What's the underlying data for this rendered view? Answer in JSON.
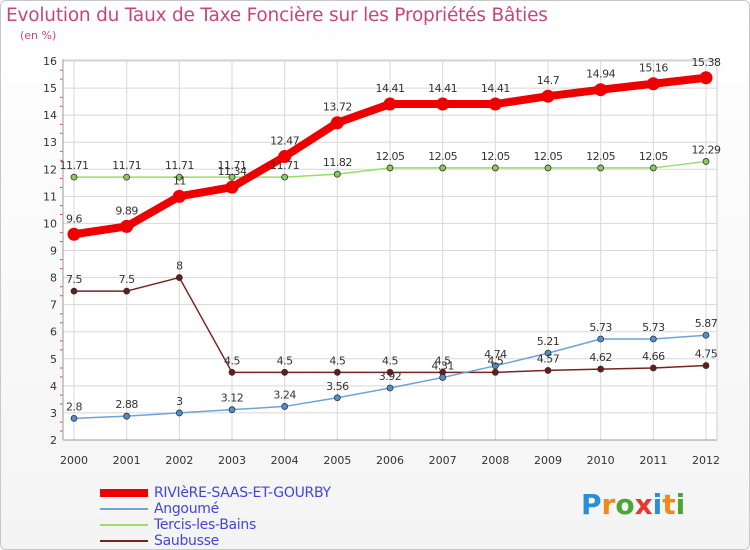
{
  "title": "Evolution du Taux de Taxe Foncière sur les Propriétés Bâties",
  "subtitle": "(en %)",
  "logo_text": "Proxiti",
  "logo_colors": [
    "#2b8fd6",
    "#f08a1c",
    "#4aa832",
    "#e23a2e",
    "#2b8fd6",
    "#f08a1c",
    "#4aa832"
  ],
  "chart_data": {
    "type": "line",
    "title": "Evolution du Taux de Taxe Foncière sur les Propriétés Bâties",
    "ylabel": "(en %)",
    "x": [
      "2000",
      "2001",
      "2002",
      "2003",
      "2004",
      "2005",
      "2006",
      "2007",
      "2008",
      "2009",
      "2010",
      "2011",
      "2012"
    ],
    "ylim": [
      2,
      16
    ],
    "yticks": [
      "2",
      "3",
      "4",
      "5",
      "6",
      "7",
      "8",
      "9",
      "10",
      "11",
      "12",
      "13",
      "14",
      "15",
      "16"
    ],
    "grid": true,
    "legend_position": "bottom-left",
    "series": [
      {
        "name": "RIVIèRE-SAAS-ET-GOURBY",
        "color": "#ee0000",
        "values": [
          9.6,
          9.89,
          11,
          11.34,
          12.47,
          13.72,
          14.41,
          14.41,
          14.41,
          14.7,
          14.94,
          15.16,
          15.38
        ],
        "labels": [
          "9.6",
          "9.89",
          "11",
          "11.34",
          "12.47",
          "13.72",
          "14.41",
          "14.41",
          "14.41",
          "14.7",
          "14.94",
          "15.16",
          "15.38"
        ]
      },
      {
        "name": "Angoumé",
        "color": "#6fa3d6",
        "values": [
          2.8,
          2.88,
          3,
          3.12,
          3.24,
          3.56,
          3.92,
          4.31,
          4.74,
          5.21,
          5.73,
          5.73,
          5.87
        ],
        "labels": [
          "2.8",
          "2.88",
          "3",
          "3.12",
          "3.24",
          "3.56",
          "3.92",
          "4.31",
          "4.74",
          "5.21",
          "5.73",
          "5.73",
          "5.87"
        ]
      },
      {
        "name": "Tercis-les-Bains",
        "color": "#99dd66",
        "values": [
          11.71,
          11.71,
          11.71,
          11.71,
          11.71,
          11.82,
          12.05,
          12.05,
          12.05,
          12.05,
          12.05,
          12.05,
          12.29
        ],
        "labels": [
          "11.71",
          "11.71",
          "11.71",
          "11.71",
          "11.71",
          "11.82",
          "12.05",
          "12.05",
          "12.05",
          "12.05",
          "12.05",
          "12.05",
          "12.29"
        ]
      },
      {
        "name": "Saubusse",
        "color": "#7a2222",
        "values": [
          7.5,
          7.5,
          8,
          4.5,
          4.5,
          4.5,
          4.5,
          4.5,
          4.5,
          4.57,
          4.62,
          4.66,
          4.75
        ],
        "labels": [
          "7.5",
          "7.5",
          "8",
          "4.5",
          "4.5",
          "4.5",
          "4.5",
          "4.5",
          "4.5",
          "4.57",
          "4.62",
          "4.66",
          "4.75"
        ]
      }
    ]
  }
}
